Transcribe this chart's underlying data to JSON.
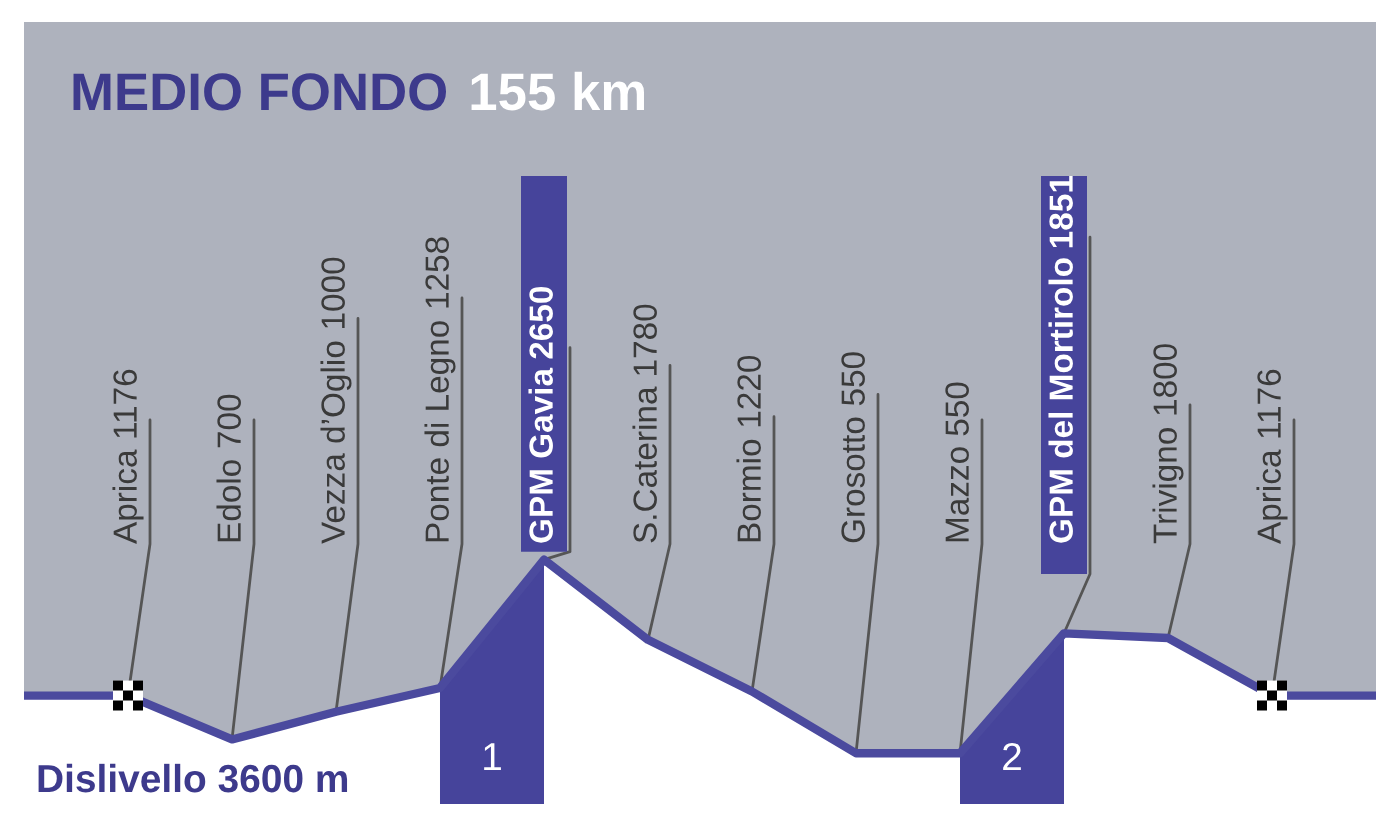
{
  "chart_data": {
    "type": "area",
    "title": "MEDIO FONDO",
    "subtitle": "155 km",
    "categories": [
      null,
      "Aprica",
      "Edolo",
      "Vezza d’Oglio",
      "Ponte di Legno",
      "GPM Gavia",
      "S.Caterina",
      "Bormio",
      "Grosotto",
      "Mazzo",
      "GPM del Mortirolo",
      "Trivigno",
      "Aprica",
      null
    ],
    "series": [
      {
        "color": "#4b4a9e",
        "values": [
          1176,
          1176,
          700,
          1000,
          1258,
          2650,
          1780,
          1220,
          550,
          550,
          1851,
          1800,
          1176,
          1176
        ],
        "value_labels": [
          null,
          "1176",
          "700",
          "1000",
          null,
          null,
          "1780",
          "1220",
          "550",
          null,
          null,
          "1800",
          "1176",
          null
        ]
      },
      {
        "name": "1",
        "color": "#46449b",
        "values": [
          null,
          null,
          null,
          null,
          1258,
          2650,
          null,
          null,
          null,
          null,
          null,
          null,
          null,
          null
        ],
        "value_labels": [
          null,
          null,
          null,
          null,
          "1258",
          "2650",
          null,
          null,
          null,
          null,
          null,
          null,
          null,
          null
        ]
      },
      {
        "name": "2",
        "color": "#46449b",
        "values": [
          null,
          null,
          null,
          null,
          null,
          null,
          null,
          null,
          null,
          550,
          1851,
          null,
          null,
          null
        ],
        "value_labels": [
          null,
          null,
          null,
          null,
          null,
          null,
          null,
          null,
          null,
          "550",
          "1851",
          null,
          null,
          null
        ]
      }
    ],
    "tick_labels": "x",
    "annotations": [
      "Dislivello 3600 m"
    ]
  }
}
